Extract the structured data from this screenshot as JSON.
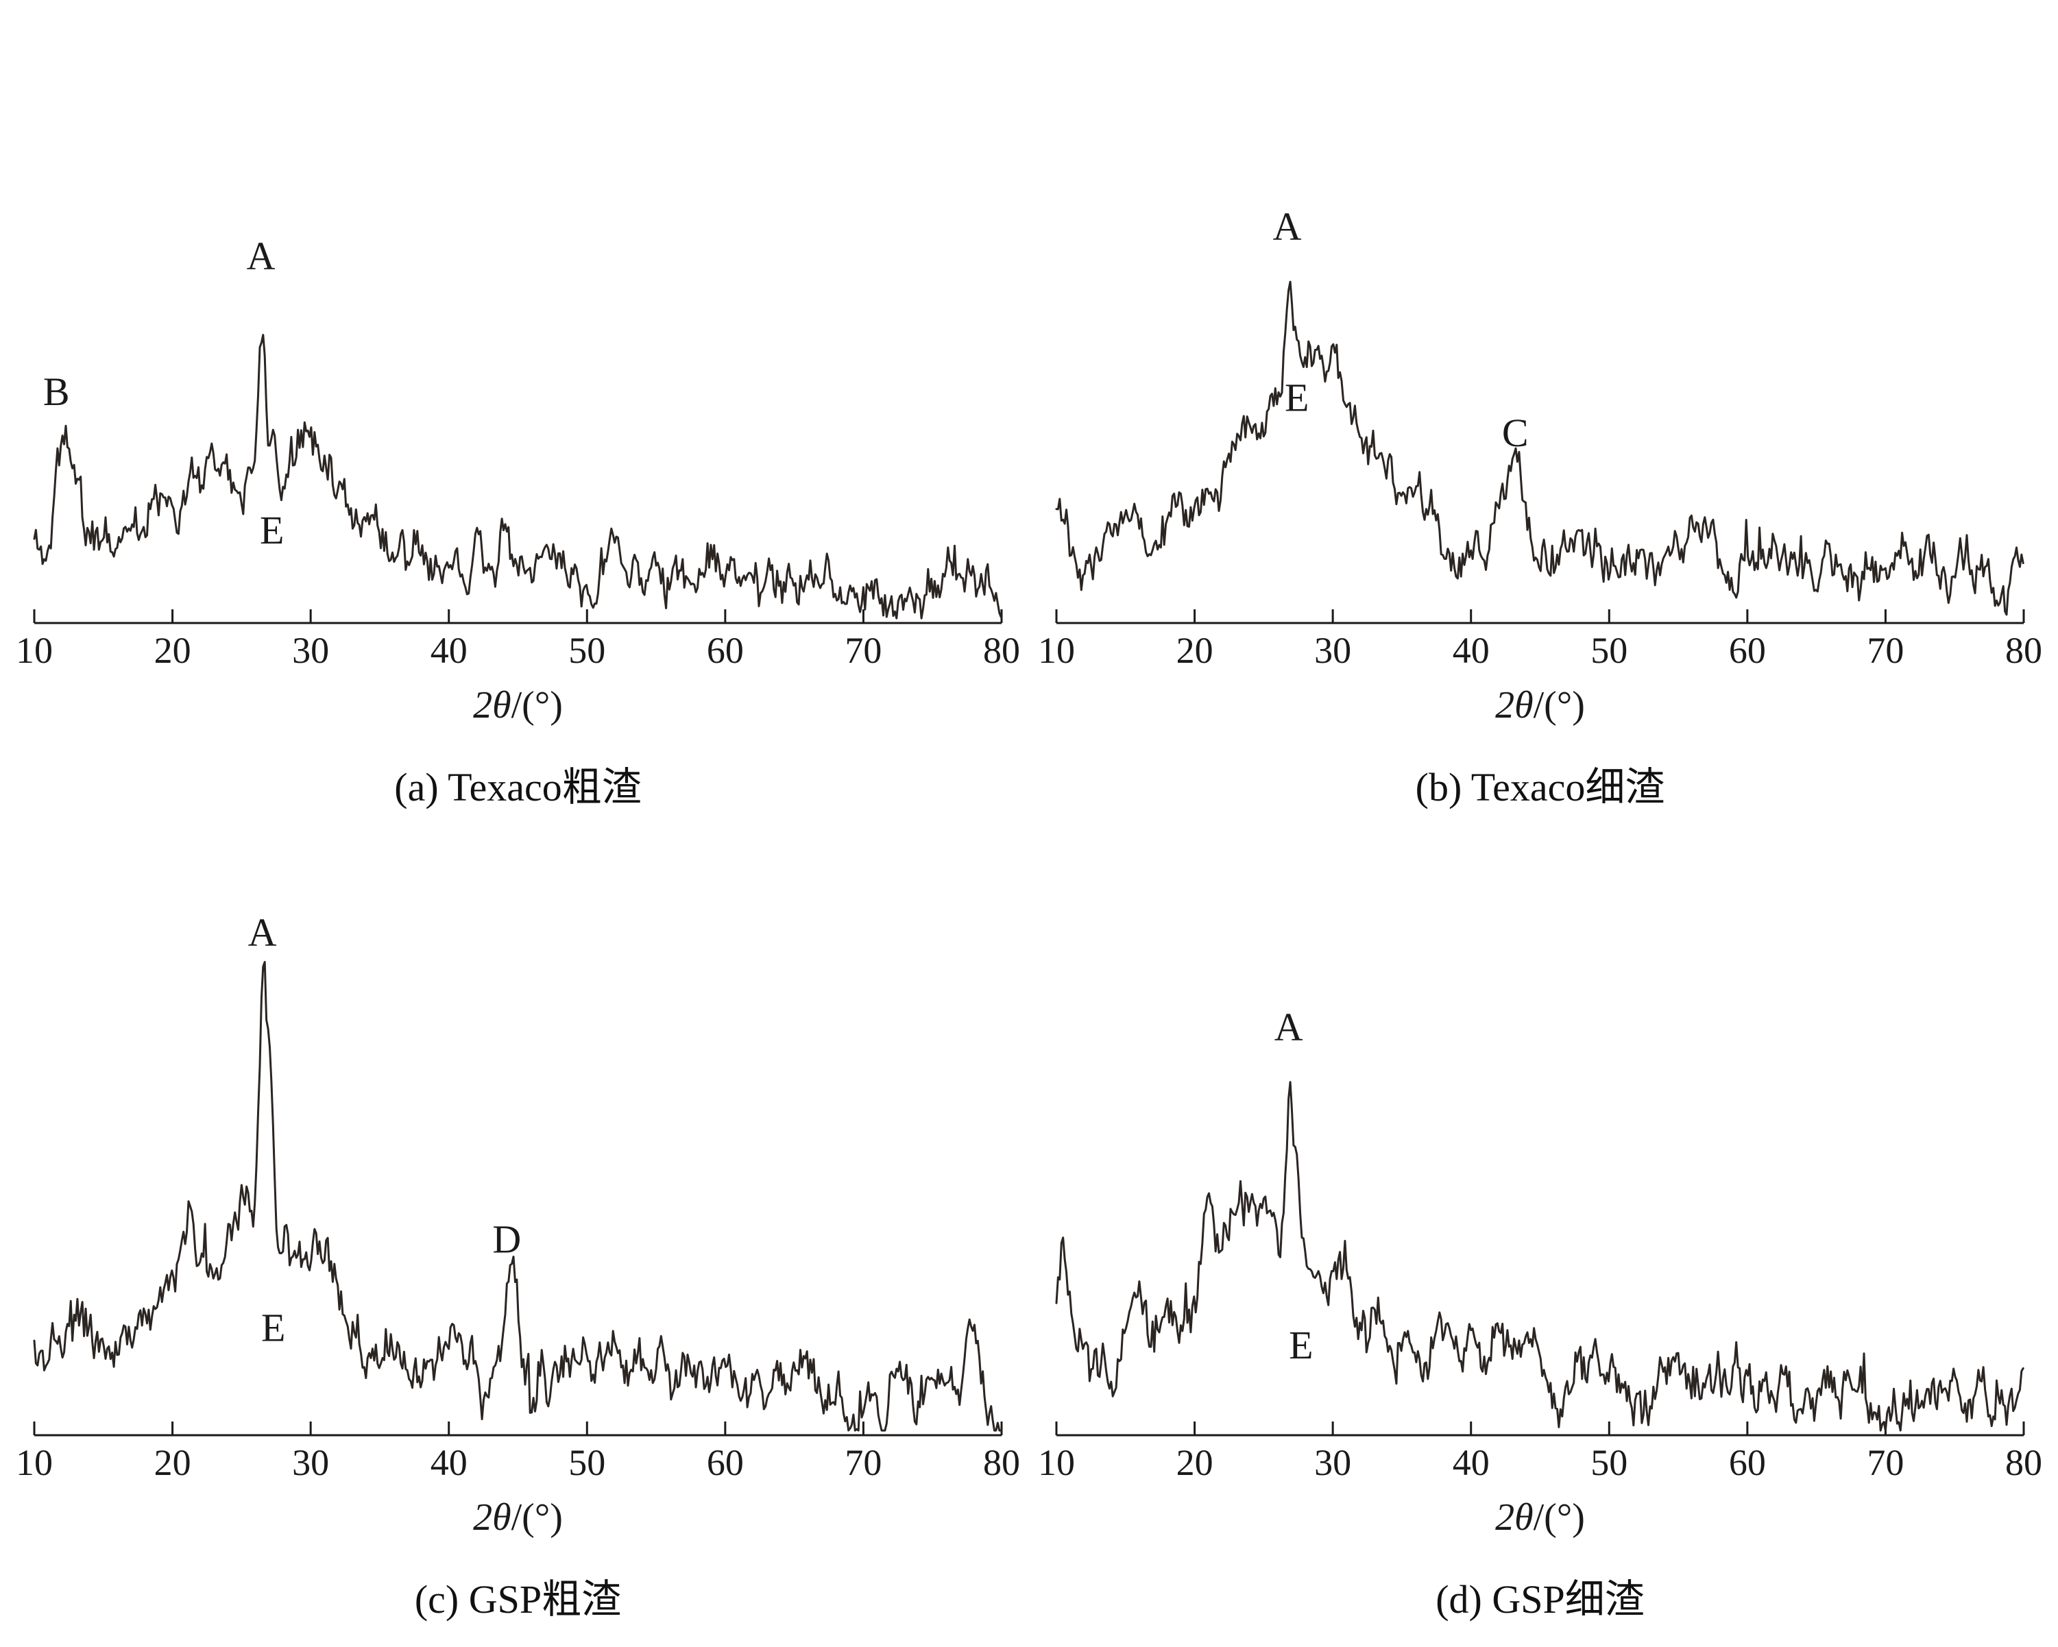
{
  "page": {
    "background": "#ffffff",
    "text_color": "#1a1a1a",
    "description": "Four XRD diffraction patterns of gasification slags arranged in a 2x2 grid"
  },
  "chart_data": [
    {
      "id": "a",
      "type": "line",
      "caption": "(a) Texaco粗渣",
      "xlabel_math": "2θ",
      "xlabel_rest": "/(°)",
      "x_range": [
        10,
        80
      ],
      "x_ticks": [
        10,
        20,
        30,
        40,
        50,
        60,
        70,
        80
      ],
      "grid": false,
      "legend": "none",
      "line_color": "#2b2522",
      "axis_color": "#1a1a1a",
      "seed": 11,
      "noise": 0.02,
      "baseline": {
        "start": 0.14,
        "end": 0.05
      },
      "humps": [
        {
          "center": 27,
          "width": 5.5,
          "height": 0.14
        },
        {
          "center": 30.5,
          "width": 1.7,
          "height": 0.06
        },
        {
          "center": 23,
          "width": 2.2,
          "height": 0.05
        }
      ],
      "peaks": [
        {
          "label": "B",
          "center": 12.1,
          "width": 0.5,
          "height": 0.17
        },
        {
          "center": 13,
          "width": 0.35,
          "height": 0.05
        },
        {
          "label": "A",
          "center": 26.5,
          "width": 0.26,
          "height": 0.26
        },
        {
          "label": "E",
          "center": 27.3,
          "width": 0.2,
          "height": 0.06
        },
        {
          "center": 29.6,
          "width": 0.35,
          "height": 0.05
        },
        {
          "center": 31.2,
          "width": 0.3,
          "height": 0.045
        },
        {
          "center": 44,
          "width": 0.3,
          "height": 0.05
        }
      ],
      "annotations": [
        {
          "text": "B",
          "x": 11.6,
          "y": 0.37
        },
        {
          "text": "A",
          "x": 26.4,
          "y": 0.6
        },
        {
          "text": "E",
          "x": 27.2,
          "y": 0.135
        }
      ]
    },
    {
      "id": "b",
      "type": "line",
      "caption": "(b) Texaco细渣",
      "xlabel_math": "2θ",
      "xlabel_rest": "/(°)",
      "x_range": [
        10,
        80
      ],
      "x_ticks": [
        10,
        20,
        30,
        40,
        50,
        60,
        70,
        80
      ],
      "grid": false,
      "legend": "none",
      "line_color": "#2b2522",
      "axis_color": "#1a1a1a",
      "seed": 22,
      "noise": 0.02,
      "baseline": {
        "start": 0.16,
        "end": 0.07
      },
      "humps": [
        {
          "center": 29,
          "width": 4.6,
          "height": 0.26
        },
        {
          "center": 26,
          "width": 2.2,
          "height": 0.05
        },
        {
          "center": 43,
          "width": 1.2,
          "height": 0.03
        },
        {
          "center": 60,
          "width": 4,
          "height": 0.02
        }
      ],
      "peaks": [
        {
          "center": 10.4,
          "width": 0.4,
          "height": 0.06
        },
        {
          "label": "A",
          "center": 26.8,
          "width": 0.26,
          "height": 0.17
        },
        {
          "label": "E",
          "center": 27.6,
          "width": 0.2,
          "height": 0.06
        },
        {
          "center": 28.4,
          "width": 0.3,
          "height": 0.05
        },
        {
          "center": 30.3,
          "width": 0.35,
          "height": 0.06
        },
        {
          "label": "C",
          "center": 43.2,
          "width": 0.4,
          "height": 0.08
        }
      ],
      "annotations": [
        {
          "text": "A",
          "x": 26.7,
          "y": 0.65
        },
        {
          "text": "E",
          "x": 27.4,
          "y": 0.36
        },
        {
          "text": "C",
          "x": 43.2,
          "y": 0.3
        }
      ]
    },
    {
      "id": "c",
      "type": "line",
      "caption": "(c) GSP粗渣",
      "xlabel_math": "2θ",
      "xlabel_rest": "/(°)",
      "x_range": [
        10,
        80
      ],
      "x_ticks": [
        10,
        20,
        30,
        40,
        50,
        60,
        70,
        80
      ],
      "grid": false,
      "legend": "none",
      "line_color": "#2b2522",
      "axis_color": "#1a1a1a",
      "seed": 33,
      "noise": 0.023,
      "baseline": {
        "start": 0.14,
        "end": 0.06
      },
      "humps": [
        {
          "center": 25.5,
          "width": 3.4,
          "height": 0.15
        },
        {
          "center": 26,
          "width": 7.5,
          "height": 0.08
        },
        {
          "center": 31.5,
          "width": 1.4,
          "height": 0.04
        }
      ],
      "peaks": [
        {
          "center": 20.5,
          "width": 0.3,
          "height": 0.04
        },
        {
          "center": 21.3,
          "width": 0.35,
          "height": 0.05
        },
        {
          "label": "A",
          "center": 26.6,
          "width": 0.28,
          "height": 0.42
        },
        {
          "label": "E",
          "center": 27.2,
          "width": 0.2,
          "height": 0.18
        },
        {
          "label": "D",
          "center": 44.4,
          "width": 0.4,
          "height": 0.13
        },
        {
          "center": 44.9,
          "width": 0.25,
          "height": 0.05
        },
        {
          "center": 60.2,
          "width": 0.3,
          "height": 0.05
        },
        {
          "center": 64,
          "width": 0.3,
          "height": 0.04
        },
        {
          "center": 77.8,
          "width": 0.35,
          "height": 0.09
        }
      ],
      "annotations": [
        {
          "text": "A",
          "x": 26.5,
          "y": 0.83
        },
        {
          "text": "E",
          "x": 27.3,
          "y": 0.16
        },
        {
          "text": "D",
          "x": 44.2,
          "y": 0.31
        }
      ]
    },
    {
      "id": "d",
      "type": "line",
      "caption": "(d) GSP细渣",
      "xlabel_math": "2θ",
      "xlabel_rest": "/(°)",
      "x_range": [
        10,
        80
      ],
      "x_ticks": [
        10,
        20,
        30,
        40,
        50,
        60,
        70,
        80
      ],
      "grid": false,
      "legend": "none",
      "line_color": "#2b2522",
      "axis_color": "#1a1a1a",
      "seed": 44,
      "noise": 0.023,
      "baseline": {
        "start": 0.17,
        "end": 0.06
      },
      "humps": [
        {
          "center": 26.5,
          "width": 5,
          "height": 0.16
        },
        {
          "center": 22.5,
          "width": 2.5,
          "height": 0.05
        },
        {
          "center": 13,
          "width": 0.9,
          "height": -0.08
        }
      ],
      "peaks": [
        {
          "center": 10.5,
          "width": 0.5,
          "height": 0.08
        },
        {
          "center": 21,
          "width": 0.35,
          "height": 0.09
        },
        {
          "center": 24,
          "width": 0.3,
          "height": 0.04
        },
        {
          "label": "A",
          "center": 26.9,
          "width": 0.28,
          "height": 0.3
        },
        {
          "label": "E",
          "center": 27.5,
          "width": 0.2,
          "height": 0.1
        },
        {
          "center": 30.2,
          "width": 0.4,
          "height": 0.05
        }
      ],
      "annotations": [
        {
          "text": "A",
          "x": 26.8,
          "y": 0.67
        },
        {
          "text": "E",
          "x": 27.7,
          "y": 0.13
        }
      ]
    }
  ]
}
